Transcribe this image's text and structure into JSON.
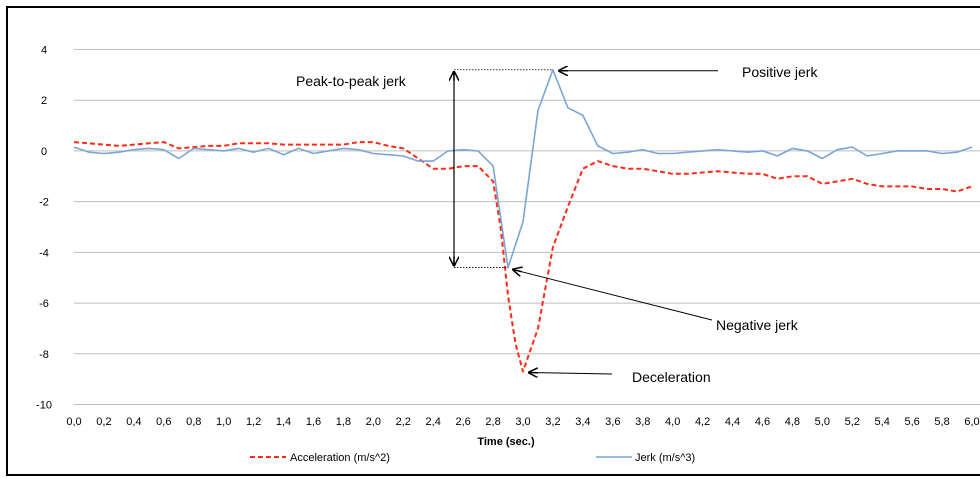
{
  "chart_data": {
    "type": "line",
    "xlabel": "Time (sec.)",
    "ylabel": "",
    "xlim": [
      0.0,
      6.0
    ],
    "ylim": [
      -10,
      4
    ],
    "grid": true,
    "legend_position": "bottom",
    "x_ticks": [
      "0,0",
      "0,2",
      "0,4",
      "0,6",
      "0,8",
      "1,0",
      "1,2",
      "1,4",
      "1,6",
      "1,8",
      "2,0",
      "2,2",
      "2,4",
      "2,6",
      "2,8",
      "3,0",
      "3,2",
      "3,4",
      "3,6",
      "3,8",
      "4,0",
      "4,2",
      "4,4",
      "4,6",
      "4,8",
      "5,0",
      "5,2",
      "5,4",
      "5,6",
      "5,8",
      "6,0"
    ],
    "y_ticks": [
      "4",
      "2",
      "0",
      "-2",
      "-4",
      "-6",
      "-8",
      "-10"
    ],
    "series": [
      {
        "name": "Acceleration (m/s^2)",
        "color": "#ff2a1a",
        "dash": "dashed",
        "x": [
          0.0,
          0.1,
          0.2,
          0.3,
          0.4,
          0.5,
          0.6,
          0.7,
          0.8,
          0.9,
          1.0,
          1.1,
          1.2,
          1.3,
          1.4,
          1.5,
          1.6,
          1.7,
          1.8,
          1.9,
          2.0,
          2.1,
          2.2,
          2.3,
          2.4,
          2.5,
          2.6,
          2.7,
          2.8,
          2.85,
          2.9,
          2.95,
          3.0,
          3.1,
          3.2,
          3.3,
          3.4,
          3.5,
          3.6,
          3.7,
          3.8,
          3.9,
          4.0,
          4.1,
          4.2,
          4.3,
          4.4,
          4.5,
          4.6,
          4.7,
          4.8,
          4.9,
          5.0,
          5.1,
          5.2,
          5.3,
          5.4,
          5.5,
          5.6,
          5.7,
          5.8,
          5.9,
          6.0
        ],
        "values": [
          0.35,
          0.3,
          0.25,
          0.2,
          0.25,
          0.3,
          0.35,
          0.1,
          0.15,
          0.2,
          0.2,
          0.3,
          0.3,
          0.3,
          0.25,
          0.25,
          0.25,
          0.25,
          0.25,
          0.35,
          0.35,
          0.2,
          0.1,
          -0.3,
          -0.7,
          -0.7,
          -0.6,
          -0.6,
          -1.2,
          -3.0,
          -5.7,
          -7.6,
          -8.7,
          -7.0,
          -3.8,
          -2.2,
          -0.7,
          -0.4,
          -0.6,
          -0.7,
          -0.7,
          -0.8,
          -0.9,
          -0.9,
          -0.85,
          -0.8,
          -0.85,
          -0.9,
          -0.9,
          -1.1,
          -1.0,
          -1.0,
          -1.3,
          -1.2,
          -1.1,
          -1.3,
          -1.4,
          -1.4,
          -1.4,
          -1.5,
          -1.5,
          -1.6,
          -1.4
        ]
      },
      {
        "name": "Jerk (m/s^3)",
        "color": "#7aa5d6",
        "dash": "solid",
        "x": [
          0.0,
          0.1,
          0.2,
          0.3,
          0.4,
          0.5,
          0.6,
          0.7,
          0.8,
          0.9,
          1.0,
          1.1,
          1.2,
          1.3,
          1.4,
          1.5,
          1.6,
          1.7,
          1.8,
          1.9,
          2.0,
          2.1,
          2.2,
          2.3,
          2.4,
          2.5,
          2.6,
          2.7,
          2.8,
          2.9,
          3.0,
          3.1,
          3.2,
          3.3,
          3.4,
          3.5,
          3.6,
          3.7,
          3.8,
          3.9,
          4.0,
          4.1,
          4.2,
          4.3,
          4.4,
          4.5,
          4.6,
          4.7,
          4.8,
          4.9,
          5.0,
          5.1,
          5.2,
          5.3,
          5.4,
          5.5,
          5.6,
          5.7,
          5.8,
          5.9,
          6.0
        ],
        "values": [
          0.15,
          -0.05,
          -0.1,
          -0.05,
          0.05,
          0.1,
          0.05,
          -0.3,
          0.1,
          0.05,
          0.0,
          0.1,
          -0.05,
          0.1,
          -0.15,
          0.1,
          -0.1,
          0.0,
          0.1,
          0.05,
          -0.1,
          -0.15,
          -0.2,
          -0.4,
          -0.4,
          0.0,
          0.05,
          0.0,
          -0.6,
          -4.6,
          -2.8,
          1.6,
          3.2,
          1.7,
          1.4,
          0.2,
          -0.1,
          -0.05,
          0.05,
          -0.1,
          -0.1,
          -0.05,
          0.0,
          0.05,
          0.0,
          -0.05,
          0.0,
          -0.2,
          0.1,
          0.0,
          -0.3,
          0.05,
          0.15,
          -0.2,
          -0.1,
          0.0,
          0.0,
          0.0,
          -0.1,
          -0.05,
          0.15
        ]
      }
    ],
    "annotations": [
      {
        "text": "Peak-to-peak jerk"
      },
      {
        "text": "Positive jerk"
      },
      {
        "text": "Negative jerk"
      },
      {
        "text": "Deceleration"
      }
    ]
  }
}
